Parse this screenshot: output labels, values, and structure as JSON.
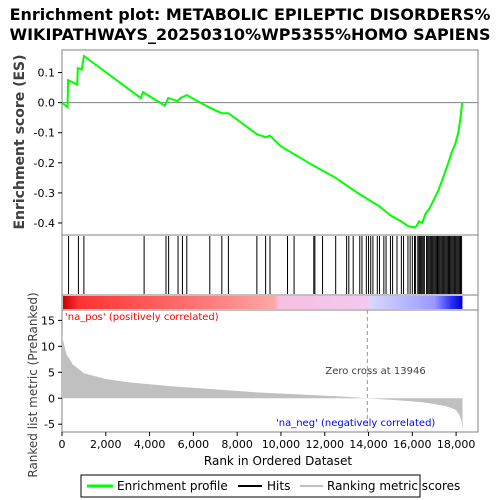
{
  "chart_data": {
    "type": "line",
    "title_line1": "Enrichment plot: METABOLIC EPILEPTIC DISORDERS%",
    "title_line2": "WIKIPATHWAYS_20250310%WP5355%HOMO SAPIENS",
    "es_panel": {
      "ylabel": "Enrichment score (ES)",
      "ylim": [
        -0.44,
        0.175
      ],
      "yticks": [
        "0.1",
        "0.0",
        "-0.1",
        "-0.2",
        "-0.3",
        "-0.4"
      ],
      "ytick_values": [
        0.1,
        0.0,
        -0.1,
        -0.2,
        -0.3,
        -0.4
      ],
      "line_color": "#00ff00",
      "series": [
        {
          "x": [
            0,
            250,
            280,
            700,
            720,
            900,
            1000,
            3600,
            3700,
            4700,
            4850,
            5300,
            5400,
            5700,
            6700,
            7300,
            7600,
            8900,
            9300,
            9500,
            10000,
            11500,
            12500,
            13500,
            14500,
            15000,
            15500,
            15800,
            16100,
            16200,
            16300,
            16450,
            16600,
            16800,
            17000,
            17200,
            17400,
            17600,
            17800,
            17950,
            18100,
            18200,
            18280
          ],
          "y": [
            0.0,
            -0.015,
            0.075,
            0.06,
            0.115,
            0.11,
            0.155,
            0.015,
            0.035,
            -0.01,
            0.015,
            0.005,
            0.015,
            0.025,
            -0.015,
            -0.035,
            -0.035,
            -0.105,
            -0.115,
            -0.11,
            -0.145,
            -0.21,
            -0.25,
            -0.3,
            -0.345,
            -0.375,
            -0.395,
            -0.41,
            -0.415,
            -0.41,
            -0.395,
            -0.4,
            -0.37,
            -0.35,
            -0.32,
            -0.29,
            -0.25,
            -0.21,
            -0.165,
            -0.14,
            -0.1,
            -0.05,
            0.0
          ]
        }
      ]
    },
    "hits": [
      300,
      750,
      1000,
      3750,
      4750,
      4870,
      5300,
      5500,
      5700,
      6750,
      7300,
      7600,
      8900,
      9300,
      9500,
      10300,
      10600,
      11500,
      11550,
      11900,
      12500,
      13000,
      13100,
      13300,
      13600,
      13700,
      13900,
      14000,
      14100,
      14200,
      14400,
      14500,
      14700,
      14800,
      15000,
      15100,
      15300,
      15500,
      15600,
      15800,
      15900,
      16000,
      16100,
      16150,
      16250,
      16300,
      16350,
      16400,
      16450,
      16500,
      16550,
      16650,
      16700,
      16750,
      16800,
      16850,
      16900,
      16950,
      17000,
      17050,
      17100,
      17150,
      17200,
      17250,
      17300,
      17350,
      17400,
      17450,
      17500,
      17550,
      17600,
      17650,
      17700,
      17750,
      17800,
      17850,
      17900,
      17950,
      18000,
      18050,
      18100,
      18150,
      18200,
      18250
    ],
    "ranked_metric": {
      "ylabel": "Ranked list metric (PreRanked)",
      "ylim": [
        -6.5,
        17
      ],
      "yticks": [
        "15",
        "10",
        "5",
        "0",
        "-5"
      ],
      "ytick_values": [
        15,
        10,
        5,
        0,
        -5
      ],
      "x": [
        0,
        200,
        500,
        1000,
        2000,
        3000,
        5000,
        7000,
        9000,
        11000,
        13000,
        13946,
        15000,
        16000,
        16500,
        17000,
        17500,
        17800,
        18000,
        18150,
        18250,
        18290
      ],
      "y": [
        12,
        8.5,
        6.5,
        4.8,
        3.7,
        3.1,
        2.3,
        1.7,
        1.1,
        0.7,
        0.3,
        0.0,
        -0.3,
        -0.6,
        -0.8,
        -1.1,
        -1.5,
        -1.9,
        -2.3,
        -3.2,
        -4.5,
        -6.0
      ],
      "pos_label": "'na_pos' (positively correlated)",
      "neg_label": "'na_neg' (negatively correlated)",
      "zero_cross_label": "Zero cross at 13946",
      "zero_cross": 13946
    },
    "xaxis": {
      "xlabel": "Rank in Ordered Dataset",
      "xlim": [
        0,
        19000
      ],
      "xticks": [
        "0",
        "2,000",
        "4,000",
        "6,000",
        "8,000",
        "10,000",
        "12,000",
        "14,000",
        "16,000",
        "18,000"
      ],
      "xtick_values": [
        0,
        2000,
        4000,
        6000,
        8000,
        10000,
        12000,
        14000,
        16000,
        18000
      ]
    },
    "legend": {
      "placement": "bottom",
      "items": [
        {
          "label": "Enrichment profile",
          "color": "#00ff00"
        },
        {
          "label": "Hits",
          "color": "#000000"
        },
        {
          "label": "Ranking metric scores",
          "color": "#c0c0c0"
        }
      ]
    },
    "colors": {
      "pos_label": "#ff0000",
      "neg_label": "#0000ff",
      "metric_fill": "#c0c0c0",
      "heat_pos": "#ff0000",
      "heat_neg": "#0000ff"
    }
  }
}
